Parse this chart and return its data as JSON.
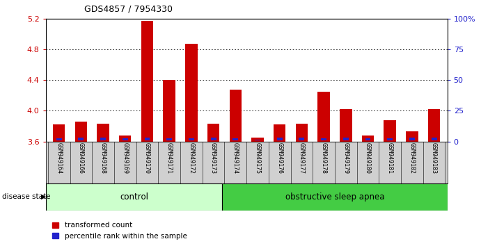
{
  "title": "GDS4857 / 7954330",
  "samples": [
    "GSM949164",
    "GSM949166",
    "GSM949168",
    "GSM949169",
    "GSM949170",
    "GSM949171",
    "GSM949172",
    "GSM949173",
    "GSM949174",
    "GSM949175",
    "GSM949176",
    "GSM949177",
    "GSM949178",
    "GSM949179",
    "GSM949180",
    "GSM949181",
    "GSM949182",
    "GSM949183"
  ],
  "red_values": [
    3.82,
    3.86,
    3.83,
    3.68,
    5.17,
    4.4,
    4.87,
    3.83,
    4.27,
    3.65,
    3.82,
    3.83,
    4.25,
    4.02,
    3.68,
    3.88,
    3.73,
    4.02
  ],
  "blue_percentiles": [
    12,
    14,
    13,
    11,
    13,
    10,
    12,
    13,
    12,
    5,
    13,
    13,
    12,
    13,
    11,
    10,
    13,
    13
  ],
  "y_min": 3.6,
  "y_max": 5.2,
  "y_ticks_left": [
    3.6,
    4.0,
    4.4,
    4.8,
    5.2
  ],
  "y_ticks_right": [
    0,
    25,
    50,
    75,
    100
  ],
  "bar_width": 0.55,
  "red_color": "#cc0000",
  "blue_color": "#2222cc",
  "control_label": "control",
  "osa_label": "obstructive sleep apnea",
  "control_color": "#ccffcc",
  "osa_color": "#44cc44",
  "group_boundary": 8,
  "legend_red": "transformed count",
  "legend_blue": "percentile rank within the sample",
  "disease_state_label": "disease state"
}
